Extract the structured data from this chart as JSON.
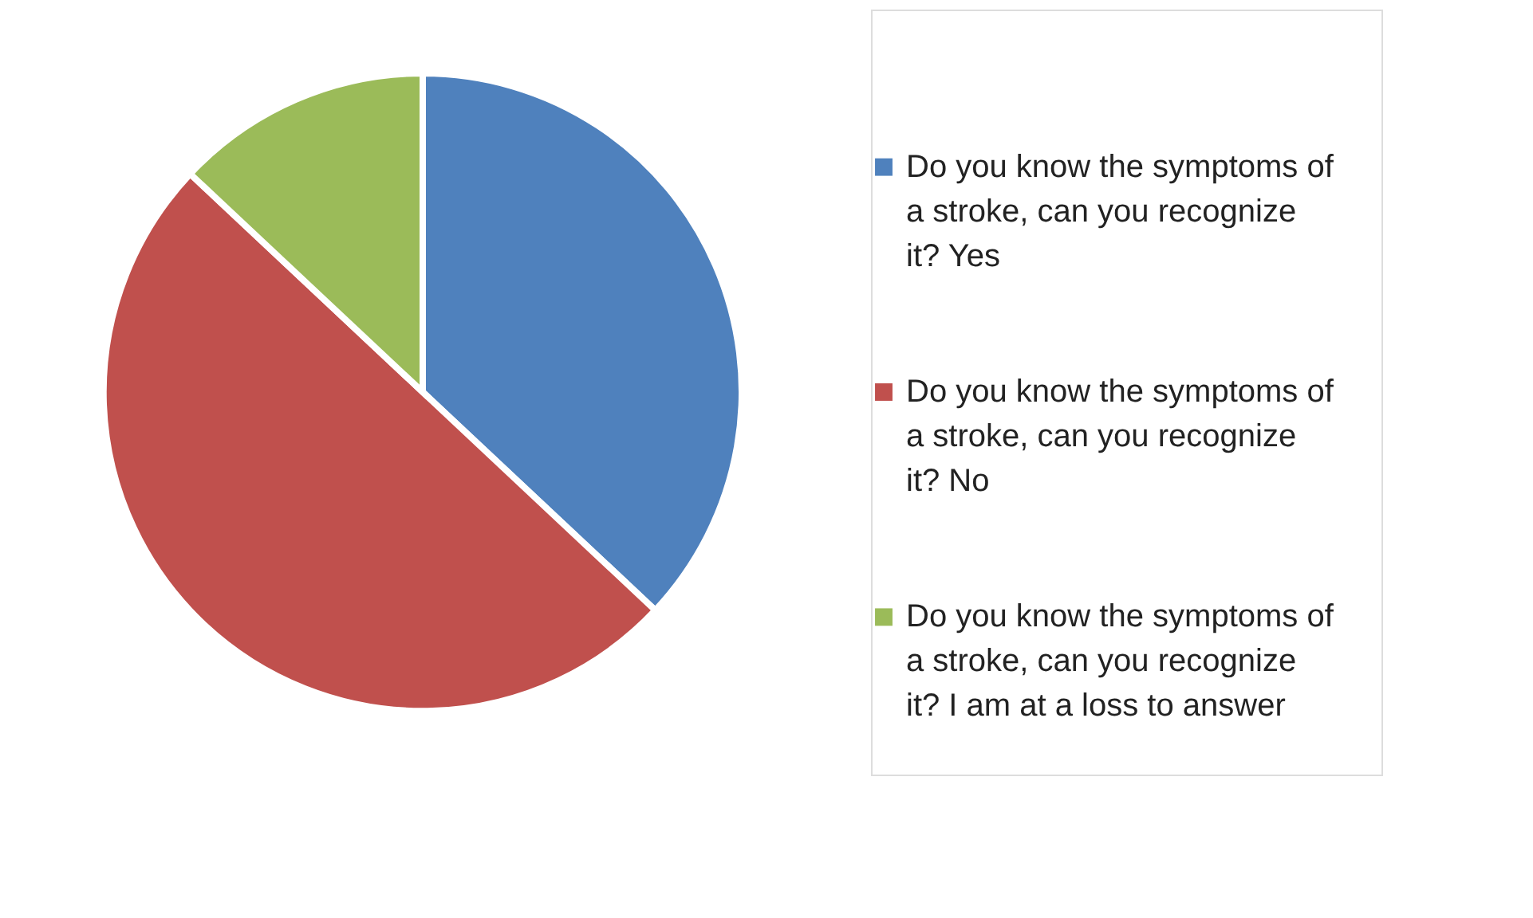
{
  "chart_data": {
    "type": "pie",
    "categories": [
      "Do you know the symptoms of a stroke, can you recognize it? Yes",
      "Do you know the symptoms of a stroke, can you recognize it? No",
      "Do you know the symptoms of a stroke, can you recognize it? I am at a loss to answer"
    ],
    "values": [
      37,
      50,
      13
    ],
    "colors": [
      "#4f81bd",
      "#c0504d",
      "#9bbb59"
    ],
    "legend": "right"
  }
}
